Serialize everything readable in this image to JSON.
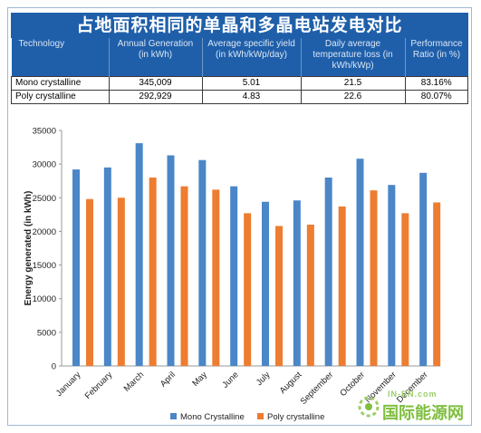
{
  "banner": {
    "title": "占地面积相同的单晶和多晶电站发电对比"
  },
  "table": {
    "headers": [
      "Technology",
      "Annual Generation (in kWh)",
      "Average specific yield (in kWh/kWp/day)",
      "Daily average temperature loss (in kWh/kWp)",
      "Performance Ratio (in %)"
    ],
    "rows": [
      [
        "Mono crystalline",
        "345,009",
        "5.01",
        "21.5",
        "83.16%"
      ],
      [
        "Poly crystalline",
        "292,929",
        "4.83",
        "22.6",
        "80.07%"
      ]
    ]
  },
  "chart_data": {
    "type": "bar",
    "categories": [
      "January",
      "February",
      "March",
      "April",
      "May",
      "June",
      "July",
      "August",
      "September",
      "October",
      "November",
      "December"
    ],
    "series": [
      {
        "name": "Mono Crystalline",
        "color": "#4a86c8",
        "values": [
          29200,
          29500,
          33100,
          31300,
          30600,
          26700,
          24400,
          24600,
          28000,
          30800,
          26900,
          28700
        ]
      },
      {
        "name": "Poly crystalline",
        "color": "#ed7d31",
        "values": [
          24800,
          25000,
          28000,
          26700,
          26200,
          22700,
          20800,
          21000,
          23700,
          26100,
          22700,
          24300
        ]
      }
    ],
    "ylabel": "Energy generated (in kWh)",
    "xlabel": "",
    "ylim": [
      0,
      35000
    ],
    "yticks": [
      0,
      5000,
      10000,
      15000,
      20000,
      25000,
      30000,
      35000
    ],
    "grid": false,
    "legend": "bottom"
  },
  "watermark": {
    "top_text": "IN-EN.com",
    "main_text": "国际能源网"
  }
}
